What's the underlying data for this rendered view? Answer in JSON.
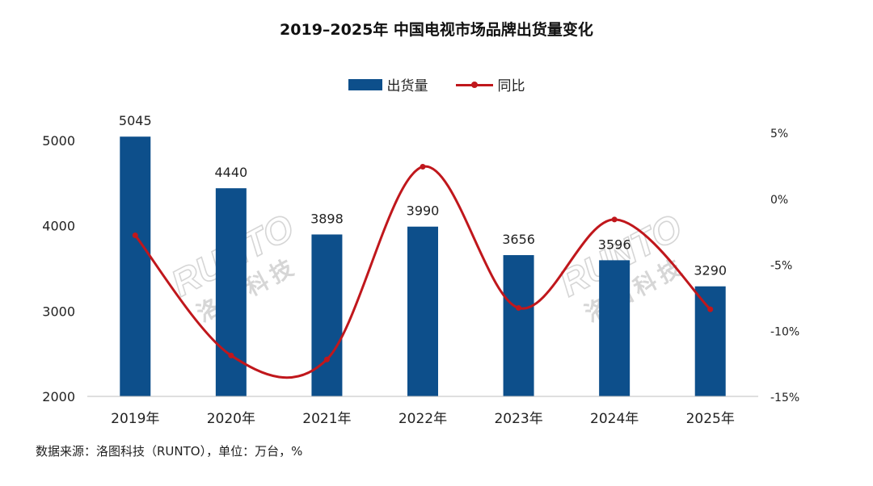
{
  "header": {
    "title": "2019–2025年 中国电视市场品牌出货量变化"
  },
  "legend": {
    "bar_label": "出货量",
    "line_label": "同比"
  },
  "watermark": {
    "brand": "RUNTO",
    "cn": "洛图科技"
  },
  "footer": {
    "source": "数据来源：洛图科技（RUNTO），单位：万台，%"
  },
  "colors": {
    "bar": "#0d4f8b",
    "line": "#c0171c",
    "watermark": "#d6d6d6"
  },
  "chart_data": {
    "type": "bar",
    "title": "2019–2025年 中国电视市场品牌出货量变化",
    "categories": [
      "2019年",
      "2020年",
      "2021年",
      "2022年",
      "2023年",
      "2024年",
      "2025年"
    ],
    "series": [
      {
        "name": "出货量",
        "type": "bar",
        "axis": "left",
        "values": [
          5045,
          4440,
          3898,
          3990,
          3656,
          3596,
          3290
        ]
      },
      {
        "name": "同比",
        "type": "line",
        "axis": "right",
        "values": [
          -2.8,
          -11.9,
          -12.2,
          2.4,
          -8.3,
          -1.6,
          -8.4
        ]
      }
    ],
    "y_left": {
      "ylim": [
        2000,
        5000
      ],
      "ticks": [
        "2000",
        "3000",
        "4000",
        "5000"
      ]
    },
    "y_right": {
      "ylim": [
        -15,
        5
      ],
      "ticks": [
        "5%",
        "0%",
        "-5%",
        "-10%",
        "-15%"
      ]
    },
    "data_labels": [
      "5045",
      "4440",
      "3898",
      "3990",
      "3656",
      "3596",
      "3290"
    ],
    "xlabel": "",
    "ylabel": "",
    "grid": false,
    "legend_position": "top-center"
  }
}
